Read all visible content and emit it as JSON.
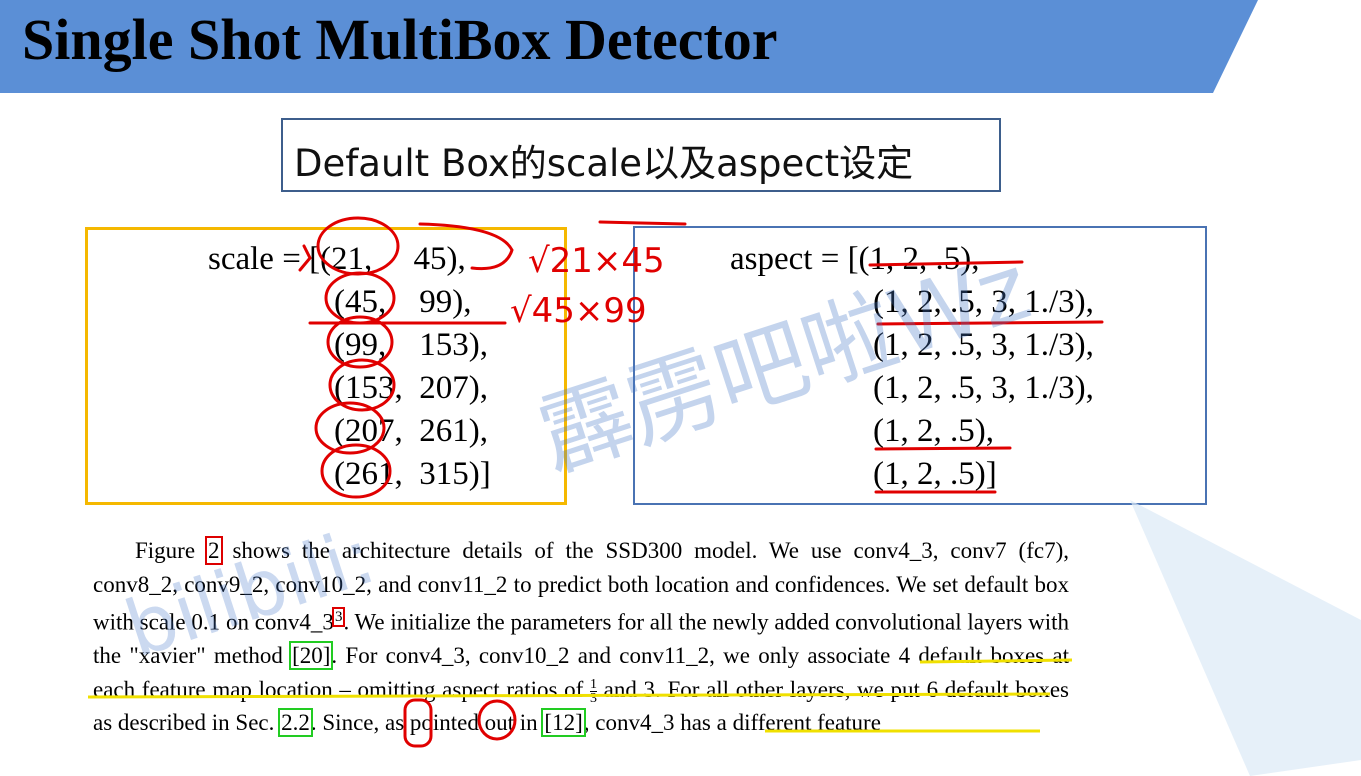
{
  "header": {
    "title": "Single Shot MultiBox Detector",
    "bar_color": "#5b8fd6"
  },
  "subtitle": "Default Box的scale以及aspect设定",
  "scale_code": [
    "scale = [(21,     45),",
    "(45,    99),",
    "(99,    153),",
    "(153,  207),",
    "(207,  261),",
    "(261,  315)]"
  ],
  "aspect_code": [
    "aspect = [(1, 2, .5),",
    "(1, 2, .5, 3, 1./3),",
    "(1, 2, .5, 3, 1./3),",
    "(1, 2, .5, 3, 1./3),",
    "(1, 2, .5),",
    "(1, 2, .5)]"
  ],
  "annotations": {
    "sqrt1": "√21×45",
    "sqrt2": "√45×99"
  },
  "paragraph": {
    "s1": "Figure ",
    "ref_fig": "2",
    "s2": " shows the architecture details of the SSD300 model. We use conv4_3, conv7 (fc7), conv8_2, conv9_2, conv10_2, and conv11_2 to predict both location and confidences. We set default box with scale 0.1 on conv4_3",
    "ref_sup": "3",
    "s3": ". We initialize the parameters for all the newly added convolutional layers with the \"xavier\" method ",
    "ref_20": "[20]",
    "s4": ". For conv4_3, conv10_2 and conv11_2, we only associate 4 default boxes at each feature map location – omitting aspect ratios of ",
    "frac_num": "1",
    "frac_den": "3",
    "s5": " and 3. For all other layers, we put 6 default boxes as described in Sec. ",
    "ref_sec": "2.2",
    "s6": ". Since, as pointed out in ",
    "ref_12": "[12]",
    "s7": ", conv4_3 has a different feature"
  },
  "watermark": {
    "line1": "霹雳吧啦Wz",
    "line2": "bilibili:"
  }
}
